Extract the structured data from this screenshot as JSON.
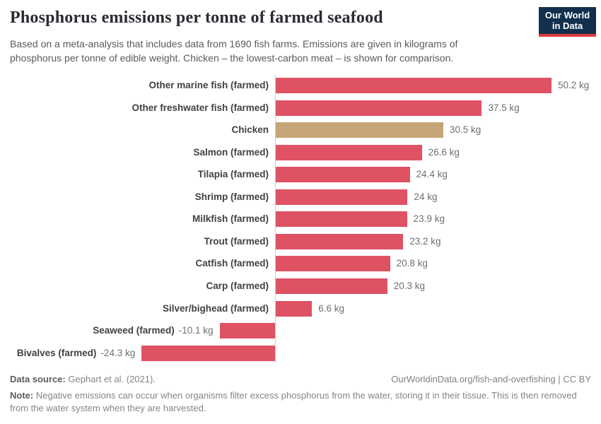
{
  "header": {
    "title": "Phosphorus emissions per tonne of farmed seafood",
    "subtitle": "Based on a meta-analysis that includes data from 1690 fish farms. Emissions are given in kilograms of phosphorus per tonne of edible weight. Chicken – the lowest-carbon meat – is shown for comparison.",
    "logo": {
      "line1": "Our World",
      "line2": "in Data"
    }
  },
  "chart_data": {
    "type": "bar",
    "orientation": "horizontal",
    "title": "Phosphorus emissions per tonne of farmed seafood",
    "unit": "kg",
    "xlim": [
      -24.3,
      50.2
    ],
    "grid": false,
    "categories": [
      "Other marine fish (farmed)",
      "Other freshwater fish (farmed)",
      "Chicken",
      "Salmon (farmed)",
      "Tilapia (farmed)",
      "Shrimp (farmed)",
      "Milkfish (farmed)",
      "Trout (farmed)",
      "Catfish (farmed)",
      "Carp (farmed)",
      "Silver/bighead (farmed)",
      "Seaweed (farmed)",
      "Bivalves (farmed)"
    ],
    "values": [
      50.2,
      37.5,
      30.5,
      26.6,
      24.4,
      24,
      23.9,
      23.2,
      20.8,
      20.3,
      6.6,
      -10.1,
      -24.3
    ],
    "value_labels": [
      "50.2 kg",
      "37.5 kg",
      "30.5 kg",
      "26.6 kg",
      "24.4 kg",
      "24 kg",
      "23.9 kg",
      "23.2 kg",
      "20.8 kg",
      "20.3 kg",
      "6.6 kg",
      "-10.1 kg",
      "-24.3 kg"
    ],
    "highlight_category": "Chicken",
    "colors": {
      "default": "#de5264",
      "highlight": "#c7a478",
      "axis_line": "#cfcfcf"
    }
  },
  "footer": {
    "datasource_label": "Data source:",
    "datasource_value": " Gephart et al. (2021).",
    "link": "OurWorldinData.org/fish-and-overfishing | CC BY",
    "note_label": "Note:",
    "note_value": " Negative emissions can occur when organisms filter excess phosphorus from the water, storing it in their tissue. This is then removed from the water system when they are harvested."
  }
}
